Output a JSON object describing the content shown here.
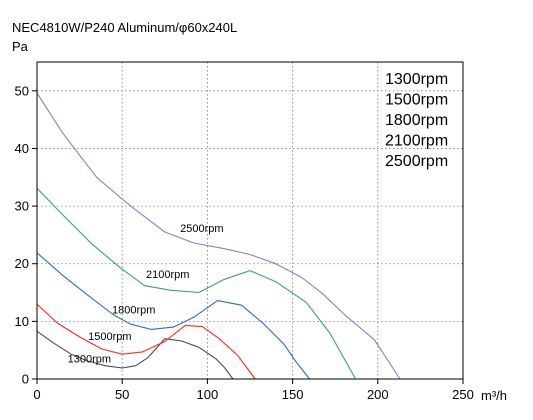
{
  "chart_data": {
    "type": "line",
    "title": "NEC4810W/P240 Aluminum/φ60x240L",
    "ylabel": "Pa",
    "xlabel": "m³/h",
    "xlim": [
      0,
      250
    ],
    "ylim": [
      0,
      55
    ],
    "xticks": [
      "0",
      "50",
      "100",
      "150",
      "200",
      "250"
    ],
    "yticks": [
      "0",
      "10",
      "20",
      "30",
      "40",
      "50"
    ],
    "grid": "dotted",
    "legend": {
      "placement": "top-right",
      "entries": [
        "1300rpm",
        "1500rpm",
        "1800rpm",
        "2100rpm",
        "2500rpm"
      ]
    },
    "series": [
      {
        "name": "1300rpm",
        "color": "#4d4d4d",
        "points": [
          [
            0,
            8.3
          ],
          [
            10,
            6.2
          ],
          [
            20,
            4.3
          ],
          [
            30,
            3.1
          ],
          [
            40,
            2.3
          ],
          [
            50,
            1.9
          ],
          [
            58,
            2.3
          ],
          [
            65,
            3.7
          ],
          [
            75,
            7.0
          ],
          [
            85,
            6.6
          ],
          [
            95,
            5.5
          ],
          [
            105,
            3.5
          ],
          [
            110,
            2.0
          ],
          [
            115,
            0
          ]
        ]
      },
      {
        "name": "1500rpm",
        "color": "#ff2a1a",
        "points": [
          [
            0,
            13.0
          ],
          [
            12,
            9.7
          ],
          [
            25,
            7.3
          ],
          [
            38,
            5.2
          ],
          [
            50,
            4.3
          ],
          [
            62,
            4.7
          ],
          [
            75,
            6.5
          ],
          [
            87,
            9.3
          ],
          [
            97,
            9.1
          ],
          [
            107,
            7.0
          ],
          [
            118,
            4.0
          ],
          [
            128,
            0
          ]
        ]
      },
      {
        "name": "1800rpm",
        "color": "#2a6bc8",
        "points": [
          [
            0,
            21.9
          ],
          [
            15,
            18.0
          ],
          [
            30,
            14.5
          ],
          [
            45,
            11.1
          ],
          [
            55,
            9.5
          ],
          [
            67,
            8.6
          ],
          [
            80,
            9.0
          ],
          [
            92,
            10.7
          ],
          [
            106,
            13.6
          ],
          [
            120,
            12.8
          ],
          [
            133,
            9.6
          ],
          [
            145,
            6.0
          ],
          [
            152,
            3.0
          ],
          [
            160,
            0
          ]
        ]
      },
      {
        "name": "2100rpm",
        "color": "#3aa36a",
        "points": [
          [
            0,
            33.1
          ],
          [
            15,
            28.5
          ],
          [
            32,
            23.5
          ],
          [
            48,
            19.5
          ],
          [
            63,
            16.2
          ],
          [
            78,
            15.4
          ],
          [
            95,
            15.0
          ],
          [
            110,
            17.3
          ],
          [
            125,
            18.8
          ],
          [
            140,
            16.9
          ],
          [
            158,
            13.3
          ],
          [
            172,
            7.9
          ],
          [
            187,
            0
          ]
        ]
      },
      {
        "name": "2500rpm",
        "color": "#8c7ec6",
        "points": [
          [
            0,
            49.6
          ],
          [
            15,
            42.7
          ],
          [
            35,
            35.0
          ],
          [
            55,
            30.0
          ],
          [
            75,
            25.5
          ],
          [
            92,
            23.6
          ],
          [
            110,
            22.6
          ],
          [
            125,
            21.6
          ],
          [
            140,
            20.0
          ],
          [
            155,
            17.7
          ],
          [
            168,
            14.7
          ],
          [
            180,
            11.3
          ],
          [
            198,
            6.8
          ],
          [
            213,
            0
          ]
        ]
      }
    ],
    "annotations": [
      {
        "text": "2500rpm",
        "x": 84,
        "y": 25.5
      },
      {
        "text": "2100rpm",
        "x": 64,
        "y": 17.5
      },
      {
        "text": "1800rpm",
        "x": 44,
        "y": 11.4
      },
      {
        "text": "1500rpm",
        "x": 30,
        "y": 6.8
      },
      {
        "text": "1300rpm",
        "x": 18,
        "y": 2.9
      }
    ]
  }
}
